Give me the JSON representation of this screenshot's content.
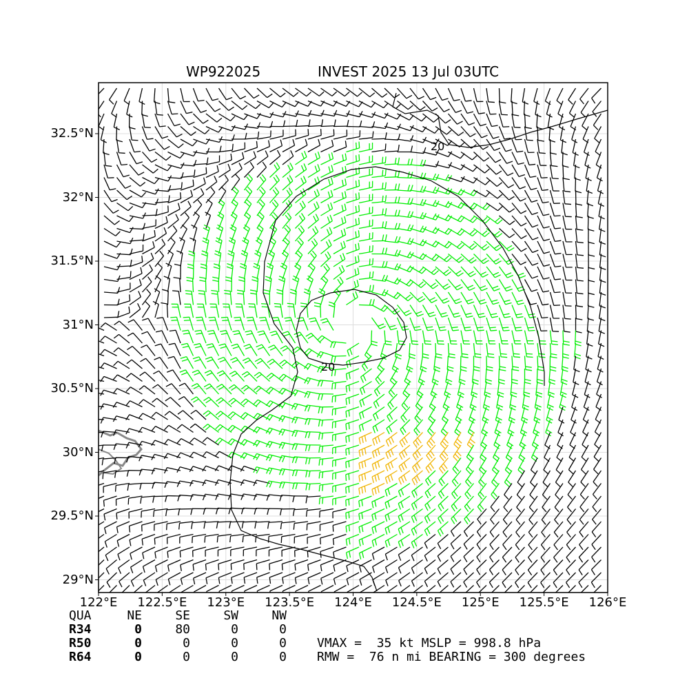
{
  "header": {
    "storm_id": "WP922025",
    "storm_title": "INVEST 2025 13 Jul 03UTC"
  },
  "map": {
    "lon_range": [
      122.0,
      126.0
    ],
    "lat_range": [
      28.9,
      32.9
    ],
    "x_ticks": [
      "122°E",
      "122.5°E",
      "123°E",
      "123.5°E",
      "124°E",
      "124.5°E",
      "125°E",
      "125.5°E",
      "126°E"
    ],
    "y_ticks": [
      "32.5°N",
      "32°N",
      "31.5°N",
      "31°N",
      "30.5°N",
      "30°N",
      "29.5°N",
      "29°N"
    ],
    "grid": true,
    "contour_label_1": "20",
    "contour_label_2": "20",
    "center": {
      "lon": 124.0,
      "lat": 31.0
    },
    "colors": {
      "barb_light": "#000000",
      "barb_gale": "#00ee00",
      "barb_storm": "#f0b400",
      "coast": "#888888",
      "contour": "#000000",
      "grid": "#dddddd"
    }
  },
  "radii_table": {
    "header": [
      "QUA",
      "NE",
      "SE",
      "SW",
      "NW"
    ],
    "rows": [
      {
        "label": "R34",
        "ne": "0",
        "se": "80",
        "sw": "0",
        "nw": "0"
      },
      {
        "label": "R50",
        "ne": "0",
        "se": "0",
        "sw": "0",
        "nw": "0"
      },
      {
        "label": "R64",
        "ne": "0",
        "se": "0",
        "sw": "0",
        "nw": "0"
      }
    ]
  },
  "stats": {
    "line1": "VMAX =  35 kt MSLP = 998.8 hPa",
    "line2": "RMW =  76 n mi BEARING = 300 degrees"
  }
}
